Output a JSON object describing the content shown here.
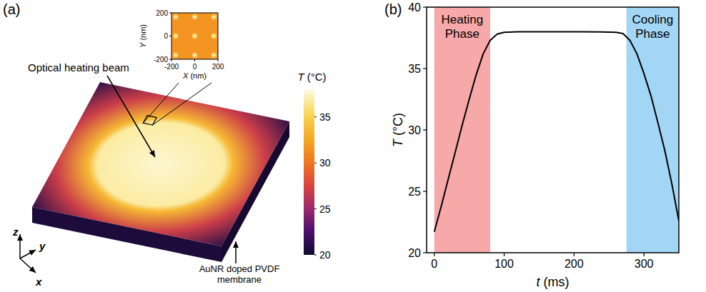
{
  "chart_data": [
    {
      "type": "heatmap",
      "label": "(a)",
      "annotations": [
        "Optical heating beam",
        "AuNR doped PVDF membrane"
      ],
      "axes": [
        "z",
        "y",
        "x"
      ],
      "colorbar": {
        "title": "T (°C)",
        "range": [
          20,
          38
        ],
        "ticks": [
          20,
          25,
          30,
          35
        ]
      },
      "field_T": [
        37.6,
        36.8,
        33.5,
        27,
        21
      ],
      "edge_T": 20.5,
      "inset": {
        "xlim": [
          -200,
          200
        ],
        "ylim": [
          -200,
          200
        ],
        "xticks": [
          -200,
          0,
          200
        ],
        "yticks": [
          -200,
          0,
          200
        ],
        "x_label": "X (nm)",
        "y_label": "Y (nm)",
        "background_T": 31.5,
        "hotspots": {
          "x": [
            -165,
            0,
            165,
            -165,
            0,
            165,
            -165,
            0,
            165
          ],
          "y": [
            165,
            165,
            165,
            0,
            0,
            0,
            -165,
            -165,
            -165
          ],
          "T": [
            36,
            36,
            36,
            36,
            36,
            36,
            36,
            36,
            36
          ]
        }
      }
    },
    {
      "type": "line",
      "label": "(b)",
      "x_label": "t (ms)",
      "y_label": "T (°C)",
      "xlim": [
        -11,
        350
      ],
      "ylim": [
        20,
        40
      ],
      "xticks": [
        0,
        100,
        200,
        300
      ],
      "yticks": [
        20,
        25,
        30,
        35,
        40
      ],
      "regions": [
        {
          "label": "Heating Phase",
          "start": 0,
          "end": 80,
          "color": "#f7a8a8"
        },
        {
          "label": "Cooling Phase",
          "start": 275,
          "end": 350,
          "color": "#a3d6f5"
        }
      ],
      "x": [
        0,
        10,
        20,
        30,
        40,
        50,
        60,
        70,
        80,
        90,
        100,
        120,
        150,
        180,
        210,
        240,
        260,
        270,
        280,
        290,
        300,
        310,
        320,
        330,
        340,
        350
      ],
      "values": [
        21.7,
        23.8,
        26.0,
        28.2,
        30.4,
        32.5,
        34.5,
        36.2,
        37.3,
        37.8,
        37.95,
        38.0,
        38.0,
        38.0,
        38.0,
        37.98,
        37.95,
        37.85,
        37.3,
        36.2,
        34.6,
        32.8,
        30.6,
        28.3,
        25.6,
        22.6
      ],
      "color": "#000000"
    }
  ]
}
